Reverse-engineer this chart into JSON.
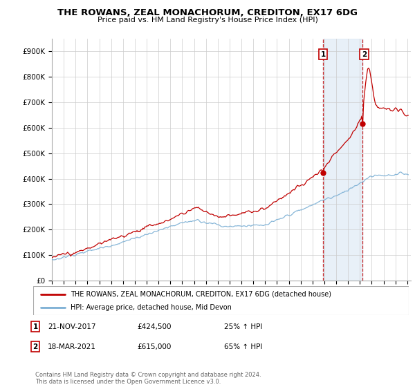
{
  "title": "THE ROWANS, ZEAL MONACHORUM, CREDITON, EX17 6DG",
  "subtitle": "Price paid vs. HM Land Registry's House Price Index (HPI)",
  "yticks": [
    0,
    100000,
    200000,
    300000,
    400000,
    500000,
    600000,
    700000,
    800000,
    900000
  ],
  "ytick_labels": [
    "£0",
    "£100K",
    "£200K",
    "£300K",
    "£400K",
    "£500K",
    "£600K",
    "£700K",
    "£800K",
    "£900K"
  ],
  "ylim": [
    0,
    950000
  ],
  "xlim_start": 1995.0,
  "xlim_end": 2025.3,
  "hpi_color": "#7bafd4",
  "price_color": "#c00000",
  "sale1_date_label": "21-NOV-2017",
  "sale1_price_label": "£424,500",
  "sale1_pct_label": "25% ↑ HPI",
  "sale1_year": 2017.9,
  "sale1_price": 424500,
  "sale2_date_label": "18-MAR-2021",
  "sale2_price_label": "£615,000",
  "sale2_pct_label": "65% ↑ HPI",
  "sale2_year": 2021.2,
  "sale2_price": 615000,
  "legend_label1": "THE ROWANS, ZEAL MONACHORUM, CREDITON, EX17 6DG (detached house)",
  "legend_label2": "HPI: Average price, detached house, Mid Devon",
  "footer": "Contains HM Land Registry data © Crown copyright and database right 2024.\nThis data is licensed under the Open Government Licence v3.0.",
  "highlight_start": 2017.9,
  "highlight_end": 2021.2,
  "background_color": "#ffffff",
  "grid_color": "#cccccc"
}
